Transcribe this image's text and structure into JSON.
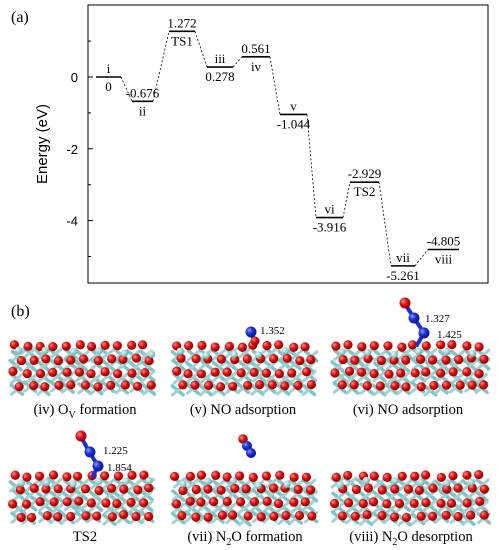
{
  "panel_a": {
    "label": "(a)",
    "ylabel": "Energy (eV)",
    "yticks": [
      "0",
      "-2",
      "-4"
    ],
    "states": [
      {
        "name": "i",
        "value": "0",
        "energy": 0
      },
      {
        "name": "ii",
        "value": "-0.676",
        "energy": -0.676
      },
      {
        "name": "TS1",
        "value": "1.272",
        "energy": 1.272
      },
      {
        "name": "iii",
        "value": "0.278",
        "energy": 0.278
      },
      {
        "name": "iv",
        "value": "0.561",
        "energy": 0.561
      },
      {
        "name": "v",
        "value": "-1.044",
        "energy": -1.044
      },
      {
        "name": "vi",
        "value": "-3.916",
        "energy": -3.916
      },
      {
        "name": "TS2",
        "value": "-2.929",
        "energy": -2.929
      },
      {
        "name": "vii",
        "value": "-5.261",
        "energy": -5.261
      },
      {
        "name": "viii",
        "value": "-4.805",
        "energy": -4.805
      }
    ]
  },
  "panel_b": {
    "label": "(b)",
    "captions": [
      {
        "pre": "(iv) O",
        "sub": "V",
        "post": " formation"
      },
      {
        "pre": "(v) NO adsorption",
        "sub": "",
        "post": ""
      },
      {
        "pre": "(vi) NO adsorption",
        "sub": "",
        "post": ""
      },
      {
        "pre": "TS2",
        "sub": "",
        "post": ""
      },
      {
        "pre": "(vii) N",
        "sub": "2",
        "post": "O formation"
      },
      {
        "pre": "(viii) N",
        "sub": "2",
        "post": "O desorption"
      }
    ],
    "bond_labels": {
      "v": [
        "1.352"
      ],
      "vi": [
        "1.327",
        "1.425"
      ],
      "ts2": [
        "1.225",
        "1.854"
      ]
    }
  },
  "colors": {
    "ti": "#9fd3d3",
    "ti_dark": "#5fa7a8",
    "oxygen": "#e01010",
    "nitrogen": "#1c2fd8"
  }
}
